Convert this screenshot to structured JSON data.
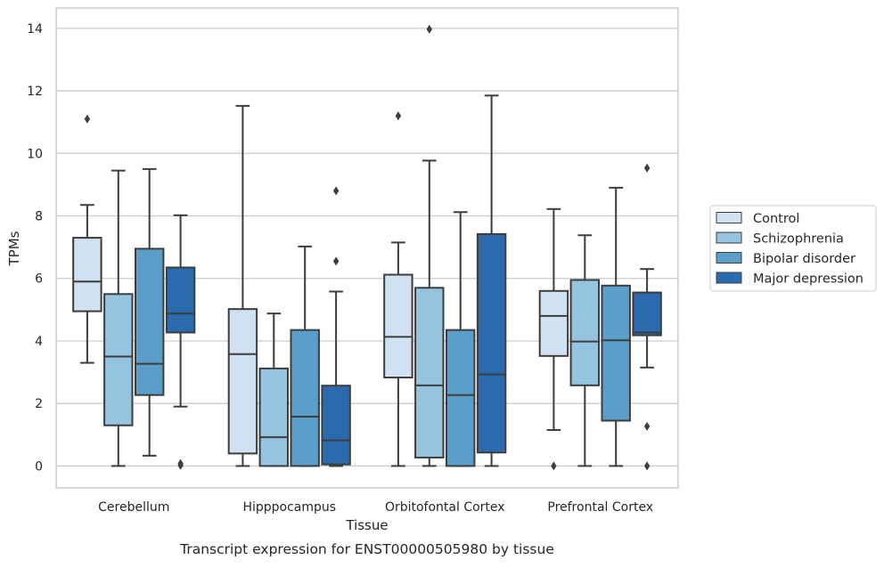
{
  "chart_data": {
    "type": "box",
    "title": "",
    "caption": "Transcript expression for ENST00000505980 by tissue",
    "xlabel": "Tissue",
    "ylabel": "TPMs",
    "ylim": [
      -0.7,
      14.65
    ],
    "yticks": [
      0,
      2,
      4,
      6,
      8,
      10,
      12,
      14
    ],
    "grid": "horizontal",
    "legend_position": "right",
    "categories": [
      "Cerebellum",
      "Hipppocampus",
      "Orbitofontal Cortex",
      "Prefrontal Cortex"
    ],
    "series": [
      {
        "name": "Control",
        "color": "#d0e1f2",
        "boxes": [
          {
            "whisker_low": 3.3,
            "q1": 4.95,
            "median": 5.9,
            "q3": 7.3,
            "whisker_high": 8.35,
            "outliers": [
              11.1
            ]
          },
          {
            "whisker_low": 0.0,
            "q1": 0.4,
            "median": 3.58,
            "q3": 5.02,
            "whisker_high": 11.52,
            "outliers": []
          },
          {
            "whisker_low": 0.0,
            "q1": 2.83,
            "median": 4.13,
            "q3": 6.12,
            "whisker_high": 7.15,
            "outliers": [
              11.2
            ]
          },
          {
            "whisker_low": 1.15,
            "q1": 3.52,
            "median": 4.8,
            "q3": 5.6,
            "whisker_high": 8.22,
            "outliers": [
              0.0
            ]
          }
        ]
      },
      {
        "name": "Schizophrenia",
        "color": "#94c4df",
        "boxes": [
          {
            "whisker_low": 0.0,
            "q1": 1.3,
            "median": 3.5,
            "q3": 5.5,
            "whisker_high": 9.45,
            "outliers": []
          },
          {
            "whisker_low": 0.0,
            "q1": 0.0,
            "median": 0.92,
            "q3": 3.12,
            "whisker_high": 4.88,
            "outliers": []
          },
          {
            "whisker_low": 0.0,
            "q1": 0.27,
            "median": 2.58,
            "q3": 5.7,
            "whisker_high": 9.77,
            "outliers": [
              13.97
            ]
          },
          {
            "whisker_low": 0.0,
            "q1": 2.58,
            "median": 3.98,
            "q3": 5.95,
            "whisker_high": 7.38,
            "outliers": []
          }
        ]
      },
      {
        "name": "Bipolar disorder",
        "color": "#5b9ec9",
        "boxes": [
          {
            "whisker_low": 0.33,
            "q1": 2.27,
            "median": 3.27,
            "q3": 6.95,
            "whisker_high": 9.5,
            "outliers": []
          },
          {
            "whisker_low": 0.0,
            "q1": 0.0,
            "median": 1.58,
            "q3": 4.35,
            "whisker_high": 7.02,
            "outliers": []
          },
          {
            "whisker_low": 0.0,
            "q1": 0.0,
            "median": 2.27,
            "q3": 4.35,
            "whisker_high": 8.12,
            "outliers": []
          },
          {
            "whisker_low": 0.0,
            "q1": 1.45,
            "median": 4.02,
            "q3": 5.77,
            "whisker_high": 8.9,
            "outliers": []
          }
        ]
      },
      {
        "name": "Major depression",
        "color": "#2a6aad",
        "boxes": [
          {
            "whisker_low": 1.9,
            "q1": 4.27,
            "median": 4.88,
            "q3": 6.35,
            "whisker_high": 8.02,
            "outliers": [
              0.02,
              0.08
            ]
          },
          {
            "whisker_low": 0.0,
            "q1": 0.05,
            "median": 0.82,
            "q3": 2.57,
            "whisker_high": 5.58,
            "outliers": [
              6.55,
              8.8
            ]
          },
          {
            "whisker_low": 0.0,
            "q1": 0.43,
            "median": 2.93,
            "q3": 7.42,
            "whisker_high": 11.85,
            "outliers": []
          },
          {
            "whisker_low": 3.15,
            "q1": 4.18,
            "median": 4.27,
            "q3": 5.55,
            "whisker_high": 6.3,
            "outliers": [
              9.53,
              1.27,
              0.0
            ]
          }
        ]
      }
    ]
  }
}
